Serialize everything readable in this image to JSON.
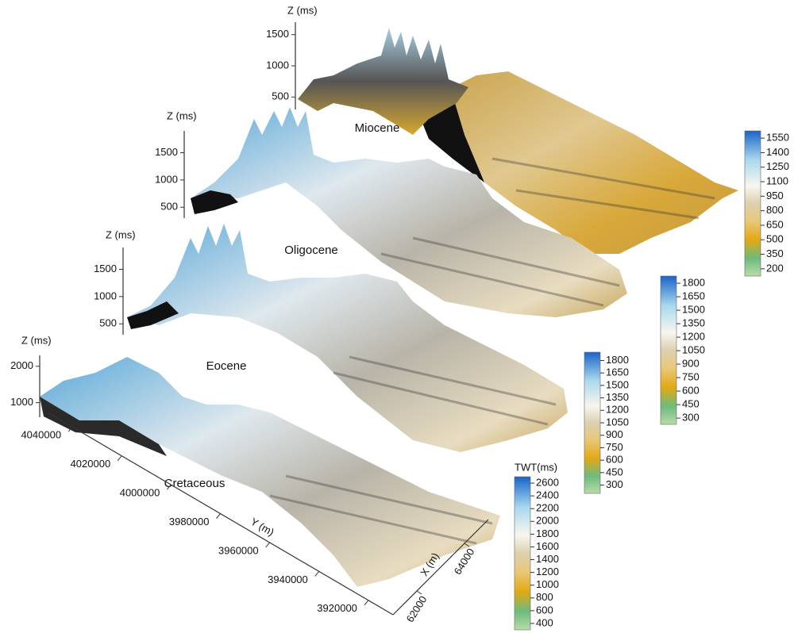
{
  "surfaces": [
    {
      "name": "Miocene",
      "z_axis": {
        "label": "Z (ms)",
        "lim": [
          300,
          1700
        ],
        "ticks": [
          500,
          1000,
          1500
        ]
      },
      "colorbar": {
        "lim": [
          125,
          1625
        ],
        "ticks": [
          200,
          350,
          500,
          650,
          800,
          950,
          1100,
          1250,
          1400,
          1550
        ]
      }
    },
    {
      "name": "Oligocene",
      "z_axis": {
        "label": "Z (ms)",
        "lim": [
          300,
          1900
        ],
        "ticks": [
          500,
          1000,
          1500
        ]
      },
      "colorbar": {
        "lim": [
          230,
          1880
        ],
        "ticks": [
          300,
          450,
          600,
          750,
          900,
          1050,
          1200,
          1350,
          1500,
          1650,
          1800
        ]
      }
    },
    {
      "name": "Eocene",
      "z_axis": {
        "label": "Z (ms)",
        "lim": [
          300,
          1900
        ],
        "ticks": [
          500,
          1000,
          1500
        ]
      },
      "colorbar": {
        "lim": [
          200,
          1900
        ],
        "ticks": [
          300,
          450,
          600,
          750,
          900,
          1050,
          1200,
          1350,
          1500,
          1650,
          1800
        ]
      }
    },
    {
      "name": "Cretaceous",
      "z_axis": {
        "label": "Z (ms)",
        "lim": [
          600,
          2300
        ],
        "ticks": [
          1000,
          2000
        ]
      },
      "colorbar": {
        "title": "TWT(ms)",
        "lim": [
          300,
          2700
        ],
        "ticks": [
          400,
          600,
          800,
          1000,
          1200,
          1400,
          1600,
          1800,
          2000,
          2200,
          2400,
          2600
        ]
      }
    }
  ],
  "base_axes": {
    "y": {
      "label": "Y (m)",
      "lim": [
        4050000,
        3910000
      ],
      "ticks": [
        4040000,
        4020000,
        4000000,
        3980000,
        3960000,
        3940000,
        3920000
      ]
    },
    "x": {
      "label": "X (m)",
      "lim": [
        61000,
        65000
      ],
      "ticks": [
        62000,
        64000
      ]
    }
  }
}
